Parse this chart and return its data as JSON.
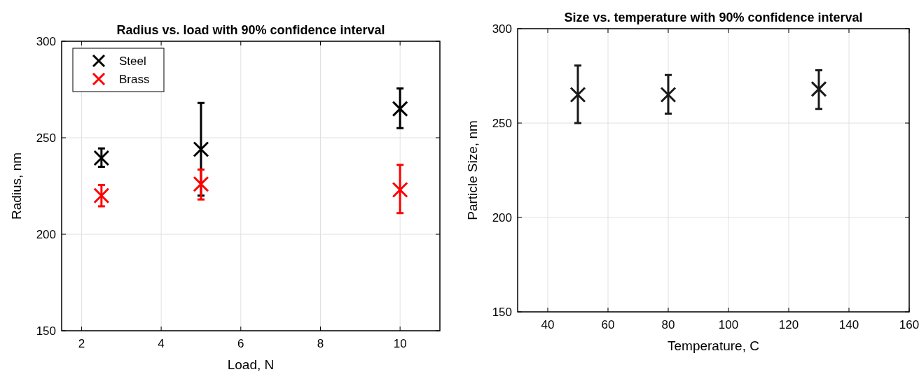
{
  "chart_data": [
    {
      "type": "scatter",
      "title": "Radius vs. load with 90% confidence interval",
      "xlabel": "Load, N",
      "ylabel": "Radius, nm",
      "xlim": [
        1.5,
        11
      ],
      "xticks": [
        2,
        4,
        6,
        8,
        10
      ],
      "ylim": [
        150,
        300
      ],
      "yticks": [
        150,
        200,
        250,
        300
      ],
      "grid": true,
      "legend": "top left",
      "marker": "cross",
      "series": [
        {
          "name": "Steel",
          "color": "#000000",
          "x": [
            2.5,
            5,
            10
          ],
          "values": [
            239.5,
            244,
            265
          ],
          "errors": [
            [
              235,
              244.5
            ],
            [
              220,
              268
            ],
            [
              255,
              275.5
            ]
          ]
        },
        {
          "name": "Brass",
          "color": "#ff0000",
          "x": [
            2.5,
            5,
            10
          ],
          "values": [
            220,
            226,
            223
          ],
          "errors": [
            [
              214.5,
              225.5
            ],
            [
              218,
              233.5
            ],
            [
              211,
              236
            ]
          ]
        }
      ]
    },
    {
      "type": "scatter",
      "title": "Size vs. temperature with 90% confidence interval",
      "xlabel": "Temperature, C",
      "ylabel": "Particle Size, nm",
      "xlim": [
        30,
        160
      ],
      "xticks": [
        40,
        60,
        80,
        100,
        120,
        140,
        160
      ],
      "ylim": [
        150,
        300
      ],
      "yticks": [
        150,
        200,
        250,
        300
      ],
      "grid": true,
      "marker": "cross",
      "series": [
        {
          "color": "#1a1a1a",
          "x": [
            50,
            80,
            130
          ],
          "values": [
            265,
            265,
            268
          ],
          "errors": [
            [
              250,
              280.5
            ],
            [
              255,
              275.5
            ],
            [
              257.5,
              278
            ]
          ]
        }
      ]
    }
  ]
}
